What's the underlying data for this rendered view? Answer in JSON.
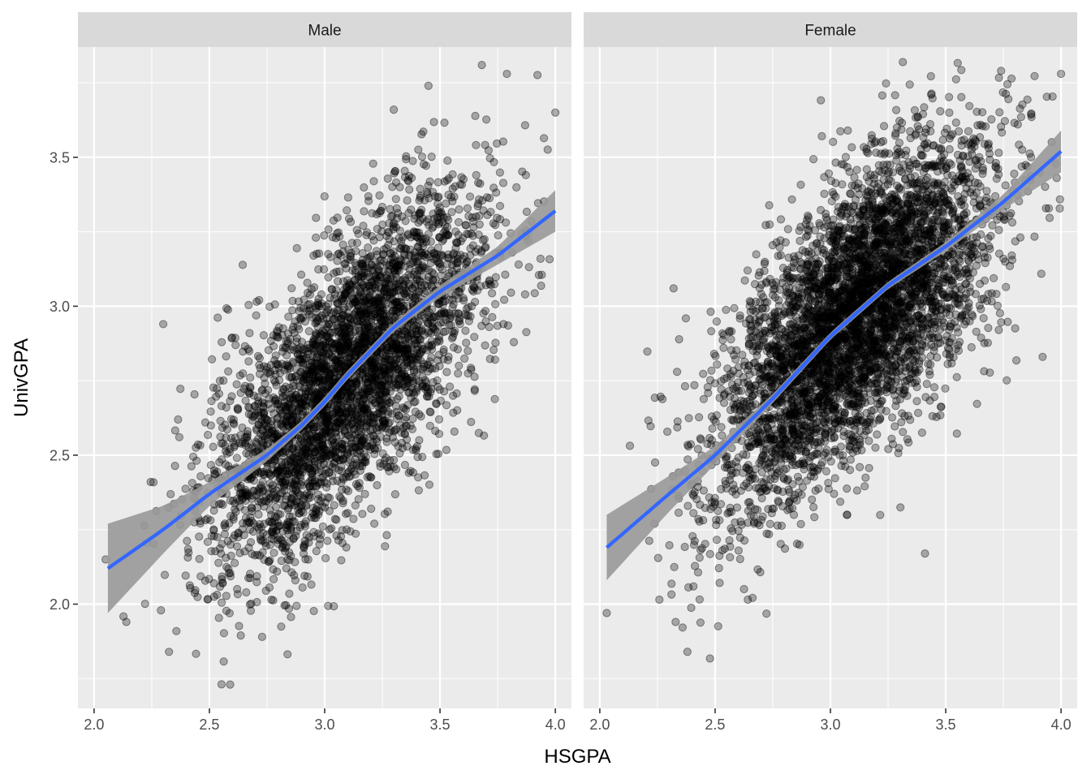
{
  "chart_data": {
    "type": "scatter",
    "xlabel": "HSGPA",
    "ylabel": "UnivGPA",
    "xlim": [
      1.93,
      4.07
    ],
    "ylim": [
      1.65,
      3.87
    ],
    "x_ticks": [
      2.0,
      2.5,
      3.0,
      3.5,
      4.0
    ],
    "x_tick_labels": [
      "2.0",
      "2.5",
      "3.0",
      "3.5",
      "4.0"
    ],
    "y_ticks": [
      2.0,
      2.5,
      3.0,
      3.5
    ],
    "y_tick_labels": [
      "2.0",
      "2.5",
      "3.0",
      "3.5"
    ],
    "grid": true,
    "point_color": "#000000",
    "point_alpha": 0.3,
    "smooth_color": "#3366FF",
    "ribbon_color": "#999999",
    "panel_background": "#EBEBEB",
    "strip_background": "#D9D9D9",
    "panels": [
      {
        "name": "Male",
        "n_points": 3800,
        "x_range": [
          2.06,
          4.0
        ],
        "cloud": {
          "x_mean": 3.1,
          "x_sd": 0.3,
          "y_sd": 0.22
        },
        "smooth": {
          "x": [
            2.06,
            2.3,
            2.5,
            2.75,
            2.9,
            3.0,
            3.1,
            3.3,
            3.5,
            3.75,
            4.0
          ],
          "y": [
            2.12,
            2.25,
            2.37,
            2.5,
            2.6,
            2.68,
            2.77,
            2.93,
            3.05,
            3.17,
            3.32
          ],
          "ribbon_halfwidth": [
            0.15,
            0.08,
            0.04,
            0.02,
            0.015,
            0.015,
            0.015,
            0.015,
            0.02,
            0.03,
            0.07
          ]
        },
        "outliers": [
          {
            "x": 2.59,
            "y": 1.73
          },
          {
            "x": 3.45,
            "y": 3.74
          },
          {
            "x": 3.79,
            "y": 3.78
          },
          {
            "x": 4.0,
            "y": 3.65
          },
          {
            "x": 2.3,
            "y": 2.94
          },
          {
            "x": 2.14,
            "y": 1.94
          },
          {
            "x": 2.05,
            "y": 2.15
          }
        ]
      },
      {
        "name": "Female",
        "n_points": 4800,
        "x_range": [
          2.03,
          4.0
        ],
        "cloud": {
          "x_mean": 3.1,
          "x_sd": 0.3,
          "y_sd": 0.22
        },
        "smooth": {
          "x": [
            2.03,
            2.3,
            2.5,
            2.75,
            3.0,
            3.25,
            3.5,
            3.75,
            4.0
          ],
          "y": [
            2.19,
            2.37,
            2.5,
            2.69,
            2.9,
            3.07,
            3.2,
            3.35,
            3.52
          ],
          "ribbon_halfwidth": [
            0.11,
            0.06,
            0.03,
            0.015,
            0.012,
            0.012,
            0.015,
            0.025,
            0.07
          ]
        },
        "outliers": [
          {
            "x": 2.03,
            "y": 1.97
          },
          {
            "x": 3.74,
            "y": 3.79
          },
          {
            "x": 4.0,
            "y": 3.78
          },
          {
            "x": 3.92,
            "y": 2.83
          },
          {
            "x": 2.32,
            "y": 3.06
          },
          {
            "x": 2.38,
            "y": 1.84
          },
          {
            "x": 3.41,
            "y": 2.17
          }
        ]
      }
    ]
  }
}
